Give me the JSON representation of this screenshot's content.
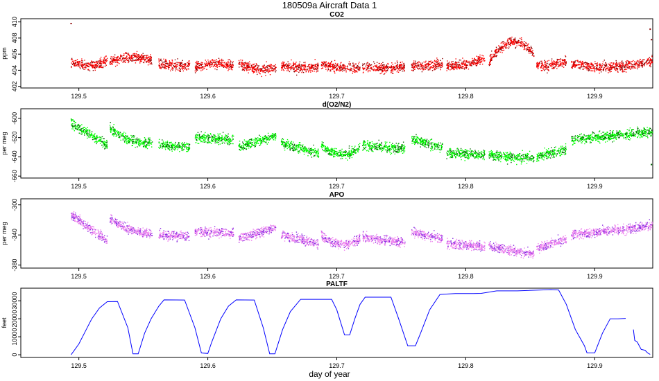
{
  "figure": {
    "title": "180509a   Aircraft Data 1",
    "xlabel": "day of year"
  },
  "chart_data": [
    {
      "id": "co2",
      "type": "scatter",
      "title": "CO2",
      "ylabel": "ppm",
      "xlim": [
        129.455,
        129.945
      ],
      "ylim": [
        401.8,
        410.4
      ],
      "xticks": [
        129.5,
        129.6,
        129.7,
        129.8,
        129.9
      ],
      "yticks": [
        402,
        404,
        406,
        408,
        410
      ],
      "color_main": "#ff0000",
      "color_dark": "#8b0000",
      "spread": 0.55,
      "segments": [
        {
          "x": [
            129.494,
            129.522
          ],
          "mean": [
            405.0,
            405.2
          ],
          "arc": 0.5
        },
        {
          "x": [
            129.524,
            129.557
          ],
          "mean": [
            405.0,
            405.2
          ],
          "arc": -0.5
        },
        {
          "x": [
            129.562,
            129.586
          ],
          "mean": [
            404.9,
            404.6
          ],
          "arc": 0.2
        },
        {
          "x": [
            129.59,
            129.62
          ],
          "mean": [
            404.4,
            404.6
          ],
          "arc": -0.3
        },
        {
          "x": [
            129.624,
            129.653
          ],
          "mean": [
            404.8,
            404.2
          ],
          "arc": 0.3
        },
        {
          "x": [
            129.657,
            129.686
          ],
          "mean": [
            404.6,
            404.5
          ],
          "arc": 0.2
        },
        {
          "x": [
            129.688,
            129.718
          ],
          "mean": [
            404.8,
            404.3
          ],
          "arc": 0.2
        },
        {
          "x": [
            129.72,
            129.753
          ],
          "mean": [
            404.4,
            404.4
          ],
          "arc": 0.1
        },
        {
          "x": [
            129.758,
            129.782
          ],
          "mean": [
            404.5,
            404.8
          ],
          "arc": 0.1
        },
        {
          "x": [
            129.785,
            129.815
          ],
          "mean": [
            404.6,
            405.5
          ],
          "arc": 0.3
        },
        {
          "x": [
            129.818,
            129.853
          ],
          "mean": [
            405.0,
            406.0
          ],
          "arc": -2.0
        },
        {
          "x": [
            129.855,
            129.878
          ],
          "mean": [
            404.6,
            405.2
          ],
          "arc": 0.3
        },
        {
          "x": [
            129.882,
            129.945
          ],
          "mean": [
            404.8,
            405.2
          ],
          "arc": 0.6
        }
      ],
      "spikes": [
        {
          "x": 129.494,
          "y": 409.8
        },
        {
          "x": 129.943,
          "y": 409.1
        },
        {
          "x": 129.944,
          "y": 407.8
        }
      ]
    },
    {
      "id": "o2n2",
      "type": "scatter",
      "title": "d(O2/N2)",
      "ylabel": "per meg",
      "xlim": [
        129.455,
        129.945
      ],
      "ylim": [
        -662,
        -590
      ],
      "xticks": [
        129.5,
        129.6,
        129.7,
        129.8,
        129.9
      ],
      "yticks": [
        -600,
        -620,
        -640,
        -660
      ],
      "color_main": "#00ff00",
      "color_dark": "#006400",
      "spread": 4.5,
      "segments": [
        {
          "x": [
            129.494,
            129.522
          ],
          "mean": [
            -605,
            -628
          ],
          "arc": 0
        },
        {
          "x": [
            129.524,
            129.557
          ],
          "mean": [
            -610,
            -625
          ],
          "arc": 5
        },
        {
          "x": [
            129.562,
            129.586
          ],
          "mean": [
            -627,
            -630
          ],
          "arc": 0
        },
        {
          "x": [
            129.59,
            129.62
          ],
          "mean": [
            -620,
            -622
          ],
          "arc": 0
        },
        {
          "x": [
            129.624,
            129.653
          ],
          "mean": [
            -630,
            -618
          ],
          "arc": 0
        },
        {
          "x": [
            129.657,
            129.686
          ],
          "mean": [
            -626,
            -636
          ],
          "arc": 0
        },
        {
          "x": [
            129.688,
            129.718
          ],
          "mean": [
            -628,
            -630
          ],
          "arc": 8
        },
        {
          "x": [
            129.72,
            129.753
          ],
          "mean": [
            -628,
            -632
          ],
          "arc": 0
        },
        {
          "x": [
            129.758,
            129.782
          ],
          "mean": [
            -622,
            -630
          ],
          "arc": 0
        },
        {
          "x": [
            129.785,
            129.815
          ],
          "mean": [
            -636,
            -638
          ],
          "arc": 0
        },
        {
          "x": [
            129.818,
            129.853
          ],
          "mean": [
            -638,
            -642
          ],
          "arc": 0
        },
        {
          "x": [
            129.855,
            129.878
          ],
          "mean": [
            -640,
            -632
          ],
          "arc": 0
        },
        {
          "x": [
            129.882,
            129.945
          ],
          "mean": [
            -622,
            -614
          ],
          "arc": 0
        }
      ],
      "spikes": [
        {
          "x": 129.944,
          "y": -648
        }
      ]
    },
    {
      "id": "apo",
      "type": "scatter",
      "title": "APO",
      "ylabel": "per meg",
      "xlim": [
        129.455,
        129.945
      ],
      "ylim": [
        -384,
        -292
      ],
      "xticks": [
        129.5,
        129.6,
        129.7,
        129.8,
        129.9
      ],
      "yticks": [
        -300,
        -340,
        -380
      ],
      "color_main": "#ee82ee",
      "color_dark": "#8a2be2",
      "spread": 5.5,
      "segments": [
        {
          "x": [
            129.494,
            129.522
          ],
          "mean": [
            -313,
            -348
          ],
          "arc": 0
        },
        {
          "x": [
            129.524,
            129.557
          ],
          "mean": [
            -318,
            -338
          ],
          "arc": 5
        },
        {
          "x": [
            129.562,
            129.586
          ],
          "mean": [
            -340,
            -342
          ],
          "arc": 0
        },
        {
          "x": [
            129.59,
            129.62
          ],
          "mean": [
            -336,
            -338
          ],
          "arc": 0
        },
        {
          "x": [
            129.624,
            129.653
          ],
          "mean": [
            -345,
            -330
          ],
          "arc": 0
        },
        {
          "x": [
            129.657,
            129.686
          ],
          "mean": [
            -340,
            -352
          ],
          "arc": 0
        },
        {
          "x": [
            129.688,
            129.718
          ],
          "mean": [
            -340,
            -345
          ],
          "arc": 10
        },
        {
          "x": [
            129.72,
            129.753
          ],
          "mean": [
            -343,
            -350
          ],
          "arc": 0
        },
        {
          "x": [
            129.758,
            129.782
          ],
          "mean": [
            -336,
            -345
          ],
          "arc": 0
        },
        {
          "x": [
            129.785,
            129.815
          ],
          "mean": [
            -352,
            -355
          ],
          "arc": 0
        },
        {
          "x": [
            129.818,
            129.853
          ],
          "mean": [
            -355,
            -366
          ],
          "arc": 0
        },
        {
          "x": [
            129.855,
            129.878
          ],
          "mean": [
            -358,
            -345
          ],
          "arc": 0
        },
        {
          "x": [
            129.882,
            129.945
          ],
          "mean": [
            -340,
            -328
          ],
          "arc": 0
        }
      ],
      "spikes": []
    },
    {
      "id": "paltf",
      "type": "line",
      "title": "PALTF",
      "ylabel": "feet",
      "xlim": [
        129.455,
        129.945
      ],
      "ylim": [
        -1500,
        37000
      ],
      "xticks": [
        129.5,
        129.6,
        129.7,
        129.8,
        129.9
      ],
      "yticks": [
        0,
        10000,
        20000,
        30000
      ],
      "color": "#0000ff",
      "line_segments": [
        [
          [
            129.494,
            0
          ],
          [
            129.5,
            6000
          ],
          [
            129.505,
            13000
          ],
          [
            129.51,
            20000
          ],
          [
            129.516,
            26000
          ],
          [
            129.522,
            29500
          ],
          [
            129.53,
            29600
          ],
          [
            129.538,
            15000
          ],
          [
            129.542,
            500
          ],
          [
            129.546,
            500
          ],
          [
            129.551,
            12000
          ],
          [
            129.556,
            20000
          ],
          [
            129.562,
            27000
          ],
          [
            129.566,
            30500
          ],
          [
            129.582,
            30400
          ],
          [
            129.59,
            15000
          ],
          [
            129.595,
            1000
          ],
          [
            129.6,
            700
          ],
          [
            129.603,
            7000
          ],
          [
            129.61,
            20000
          ],
          [
            129.616,
            27000
          ],
          [
            129.622,
            30500
          ],
          [
            129.636,
            30400
          ],
          [
            129.643,
            15000
          ],
          [
            129.648,
            500
          ],
          [
            129.652,
            500
          ],
          [
            129.658,
            14000
          ],
          [
            129.664,
            24000
          ],
          [
            129.672,
            30800
          ],
          [
            129.696,
            30800
          ],
          [
            129.7,
            25000
          ],
          [
            129.706,
            11000
          ],
          [
            129.71,
            11000
          ],
          [
            129.714,
            20000
          ],
          [
            129.718,
            28000
          ],
          [
            129.722,
            32000
          ],
          [
            129.742,
            32000
          ],
          [
            129.748,
            20000
          ],
          [
            129.755,
            5000
          ],
          [
            129.761,
            5000
          ],
          [
            129.765,
            12000
          ],
          [
            129.772,
            25000
          ],
          [
            129.78,
            33500
          ],
          [
            129.792,
            34000
          ],
          [
            129.806,
            34000
          ],
          [
            129.812,
            34100
          ],
          [
            129.824,
            35500
          ],
          [
            129.84,
            35500
          ],
          [
            129.866,
            36200
          ],
          [
            129.872,
            36000
          ],
          [
            129.878,
            28000
          ],
          [
            129.885,
            14000
          ],
          [
            129.892,
            5000
          ],
          [
            129.894,
            1000
          ],
          [
            129.9,
            1000
          ],
          [
            129.906,
            12000
          ],
          [
            129.912,
            20000
          ],
          [
            129.918,
            20000
          ],
          [
            129.924,
            20200
          ]
        ],
        [
          [
            129.93,
            14000
          ],
          [
            129.931,
            8000
          ],
          [
            129.933,
            7000
          ],
          [
            129.936,
            3000
          ],
          [
            129.939,
            2500
          ],
          [
            129.941,
            1000
          ],
          [
            129.943,
            200
          ]
        ]
      ]
    }
  ]
}
